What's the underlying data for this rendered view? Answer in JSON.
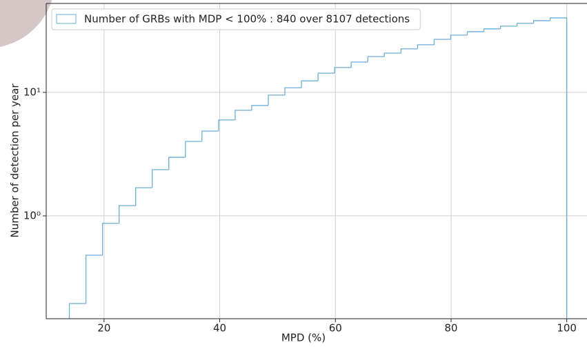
{
  "chart_data": {
    "type": "histogram",
    "xlabel": "MPD (%)",
    "ylabel": "Number of detection per year",
    "bins": [
      14,
      16.87,
      19.73,
      22.6,
      25.47,
      28.33,
      31.2,
      34.07,
      36.93,
      39.8,
      42.67,
      45.53,
      48.4,
      51.27,
      54.13,
      57,
      59.87,
      62.73,
      65.6,
      68.47,
      71.33,
      74.2,
      77.07,
      79.93,
      82.8,
      85.67,
      88.53,
      91.4,
      94.27,
      97.13,
      100
    ],
    "series": [
      {
        "name": "Number of GRBs with MDP < 100% : 840 over 8107 detections",
        "color": "#6baed6",
        "values": [
          0.195,
          0.48,
          0.87,
          1.21,
          1.69,
          2.37,
          2.98,
          4.01,
          4.86,
          5.98,
          7.16,
          7.83,
          9.5,
          10.9,
          12.4,
          14.3,
          15.9,
          17.6,
          19.5,
          20.8,
          22.5,
          24.3,
          26.9,
          29.1,
          31.0,
          32.7,
          34.4,
          36.2,
          38.1,
          40.1
        ]
      }
    ],
    "xlim": [
      10,
      103.5
    ],
    "xticks": [
      20,
      40,
      60,
      80,
      100
    ],
    "ylim": [
      0.147,
      52.5
    ],
    "yticks": [
      {
        "value": 1,
        "label": "10⁰"
      },
      {
        "value": 10,
        "label": "10¹"
      }
    ],
    "log_y": true,
    "grid": true,
    "legend": "upper left"
  }
}
